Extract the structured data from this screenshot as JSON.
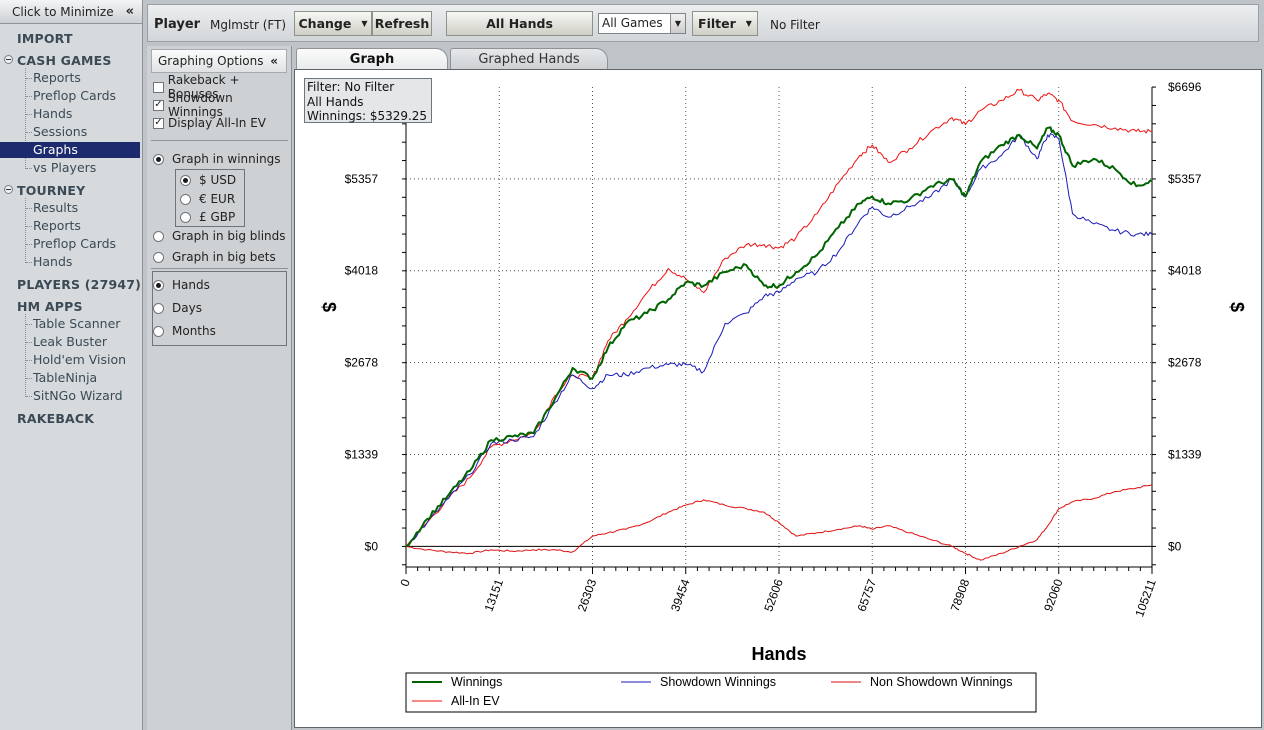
{
  "sidebar": {
    "minimize_label": "Click to Minimize",
    "minimize_icon": "«",
    "sections": {
      "import": "IMPORT",
      "cash_games": "CASH GAMES",
      "tourney": "TOURNEY",
      "players": "PLAYERS (27947)",
      "hm_apps": "HM APPS",
      "rakeback": "RAKEBACK"
    },
    "cash_items": [
      "Reports",
      "Preflop Cards",
      "Hands",
      "Sessions",
      "Graphs",
      "vs Players"
    ],
    "tourney_items": [
      "Results",
      "Reports",
      "Preflop Cards",
      "Hands"
    ],
    "app_items": [
      "Table Scanner",
      "Leak Buster",
      "Hold'em Vision",
      "TableNinja",
      "SitNGo Wizard"
    ],
    "active_item": "Graphs"
  },
  "toolbar": {
    "player_label": "Player",
    "player_name": "Mglmstr (FT)",
    "change_label": "Change",
    "refresh_label": "Refresh",
    "all_hands_label": "All Hands",
    "games_select": "All Games",
    "filter_label": "Filter",
    "filter_status": "No Filter"
  },
  "options": {
    "header": "Graphing Options",
    "header_icon": "«",
    "checkboxes": [
      {
        "label": "Rakeback + Bonuses",
        "checked": false
      },
      {
        "label": "Showdown Winnings",
        "checked": true
      },
      {
        "label": "Display All-In EV",
        "checked": true
      }
    ],
    "graph_in_winnings": "Graph in winnings",
    "currencies": [
      {
        "label": "$ USD",
        "selected": true
      },
      {
        "label": "€ EUR",
        "selected": false
      },
      {
        "label": "£ GBP",
        "selected": false
      }
    ],
    "graph_big_blinds": "Graph in big blinds",
    "graph_big_bets": "Graph in big bets",
    "x_modes": [
      {
        "label": "Hands",
        "selected": true
      },
      {
        "label": "Days",
        "selected": false
      },
      {
        "label": "Months",
        "selected": false
      }
    ]
  },
  "tabs": {
    "graph": "Graph",
    "graphed_hands": "Graphed Hands"
  },
  "filter_box": {
    "line1": "Filter: No Filter",
    "line2": "All Hands",
    "line3": "Winnings: $5329.25"
  },
  "colors": {
    "winnings": "#006400",
    "showdown": "#1a1ab8",
    "non_showdown": "#dd1111",
    "allin_ev": "#ee1111"
  },
  "chart_data": {
    "type": "line",
    "xlabel": "Hands",
    "ylabel": "$",
    "xlim": [
      0,
      105211
    ],
    "ylim": [
      -300,
      6696
    ],
    "x_ticks": [
      0,
      13151,
      26303,
      39454,
      52606,
      65757,
      78908,
      92060,
      105211
    ],
    "y_ticks": [
      0,
      1339,
      2678,
      4018,
      5357,
      6696
    ],
    "y_tick_labels": [
      "$0",
      "$1339",
      "$2678",
      "$4018",
      "$5357",
      "$6696"
    ],
    "grid": true,
    "legend_position": "bottom",
    "legend": [
      "Winnings",
      "Showdown Winnings",
      "Non Showdown Winnings",
      "All-In EV"
    ],
    "x": [
      0,
      3000,
      6000,
      9000,
      12000,
      15000,
      18000,
      21000,
      23500,
      26303,
      28500,
      31000,
      34000,
      37000,
      39454,
      42000,
      45000,
      48000,
      50500,
      52606,
      55000,
      58000,
      61000,
      64000,
      65757,
      68000,
      71000,
      74000,
      77000,
      78908,
      81000,
      84000,
      86500,
      89000,
      90500,
      92060,
      94000,
      97000,
      100000,
      103000,
      105211
    ],
    "series": [
      {
        "name": "Winnings",
        "values": [
          0,
          400,
          750,
          1100,
          1550,
          1600,
          1650,
          2150,
          2600,
          2450,
          2900,
          3250,
          3400,
          3600,
          3850,
          3800,
          4000,
          4100,
          3800,
          3800,
          4000,
          4250,
          4650,
          5000,
          5100,
          5000,
          5050,
          5250,
          5350,
          5100,
          5600,
          5850,
          6000,
          5800,
          6100,
          6000,
          5550,
          5650,
          5500,
          5250,
          5330
        ]
      },
      {
        "name": "Showdown Winnings",
        "values": [
          0,
          350,
          700,
          1050,
          1500,
          1550,
          1600,
          2100,
          2500,
          2300,
          2500,
          2500,
          2600,
          2650,
          2650,
          2550,
          3250,
          3400,
          3650,
          3700,
          3900,
          4000,
          4300,
          4750,
          4950,
          4800,
          4950,
          5100,
          5350,
          5100,
          5500,
          5700,
          6000,
          5650,
          6000,
          5950,
          4850,
          4700,
          4600,
          4550,
          4550
        ]
      },
      {
        "name": "Non Showdown Winnings",
        "values": [
          0,
          -50,
          -80,
          -100,
          -50,
          -70,
          -50,
          -50,
          -80,
          150,
          200,
          250,
          350,
          500,
          600,
          680,
          600,
          550,
          500,
          350,
          150,
          200,
          250,
          300,
          250,
          300,
          200,
          100,
          0,
          -100,
          -200,
          -100,
          0,
          100,
          300,
          550,
          650,
          700,
          800,
          850,
          900
        ]
      },
      {
        "name": "All-In EV",
        "values": [
          0,
          350,
          700,
          1000,
          1450,
          1550,
          1650,
          2200,
          2500,
          2450,
          3000,
          3300,
          3700,
          4050,
          3900,
          3700,
          4200,
          4400,
          4400,
          4350,
          4500,
          4850,
          5300,
          5700,
          5850,
          5600,
          5800,
          6050,
          6250,
          6150,
          6350,
          6500,
          6650,
          6500,
          6600,
          6500,
          6200,
          6150,
          6100,
          6050,
          6050
        ]
      }
    ]
  }
}
